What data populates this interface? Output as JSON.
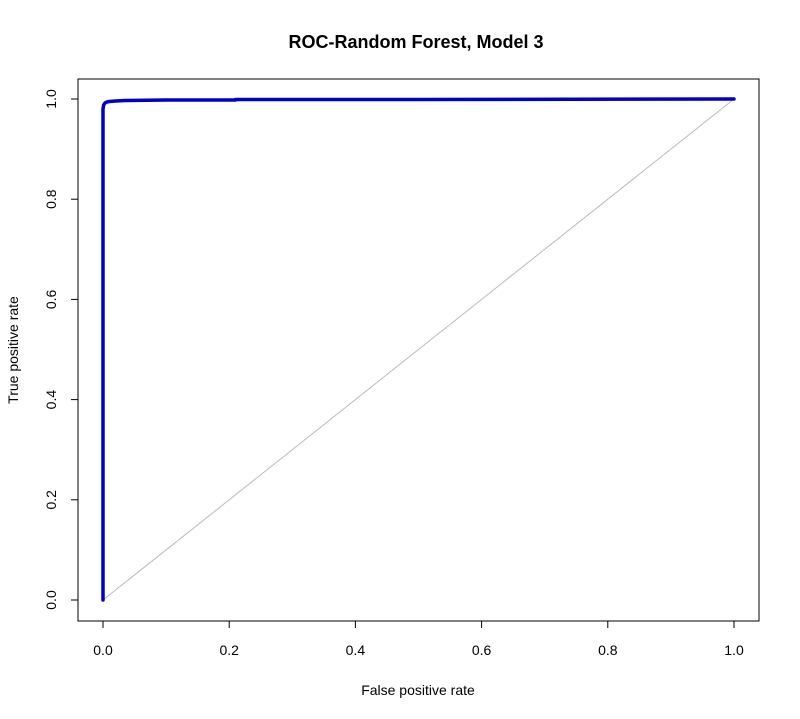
{
  "chart_data": {
    "type": "line",
    "title": "ROC-Random Forest, Model 3",
    "xlabel": "False positive rate",
    "ylabel": "True positive rate",
    "xlim": [
      0,
      1
    ],
    "ylim": [
      0,
      1
    ],
    "xticks": [
      0.0,
      0.2,
      0.4,
      0.6,
      0.8,
      1.0
    ],
    "yticks": [
      0.0,
      0.2,
      0.4,
      0.6,
      0.8,
      1.0
    ],
    "xtick_labels": [
      "0.0",
      "0.2",
      "0.4",
      "0.6",
      "0.8",
      "1.0"
    ],
    "ytick_labels": [
      "0.0",
      "0.2",
      "0.4",
      "0.6",
      "0.8",
      "1.0"
    ],
    "grid": false,
    "legend": "none",
    "series": [
      {
        "color": "#0000cc",
        "x": [
          0.0,
          0.0,
          0.0,
          0.001,
          0.003,
          0.006,
          0.01,
          0.02,
          0.035,
          0.1,
          0.21,
          0.21,
          0.5,
          1.0
        ],
        "y": [
          0.0,
          0.95,
          0.98,
          0.988,
          0.992,
          0.994,
          0.995,
          0.996,
          0.997,
          0.998,
          0.998,
          0.999,
          0.999,
          1.0
        ]
      }
    ],
    "reference_line": {
      "x": [
        0,
        1
      ],
      "y": [
        0,
        1
      ],
      "color": "#bbbbbb"
    }
  }
}
